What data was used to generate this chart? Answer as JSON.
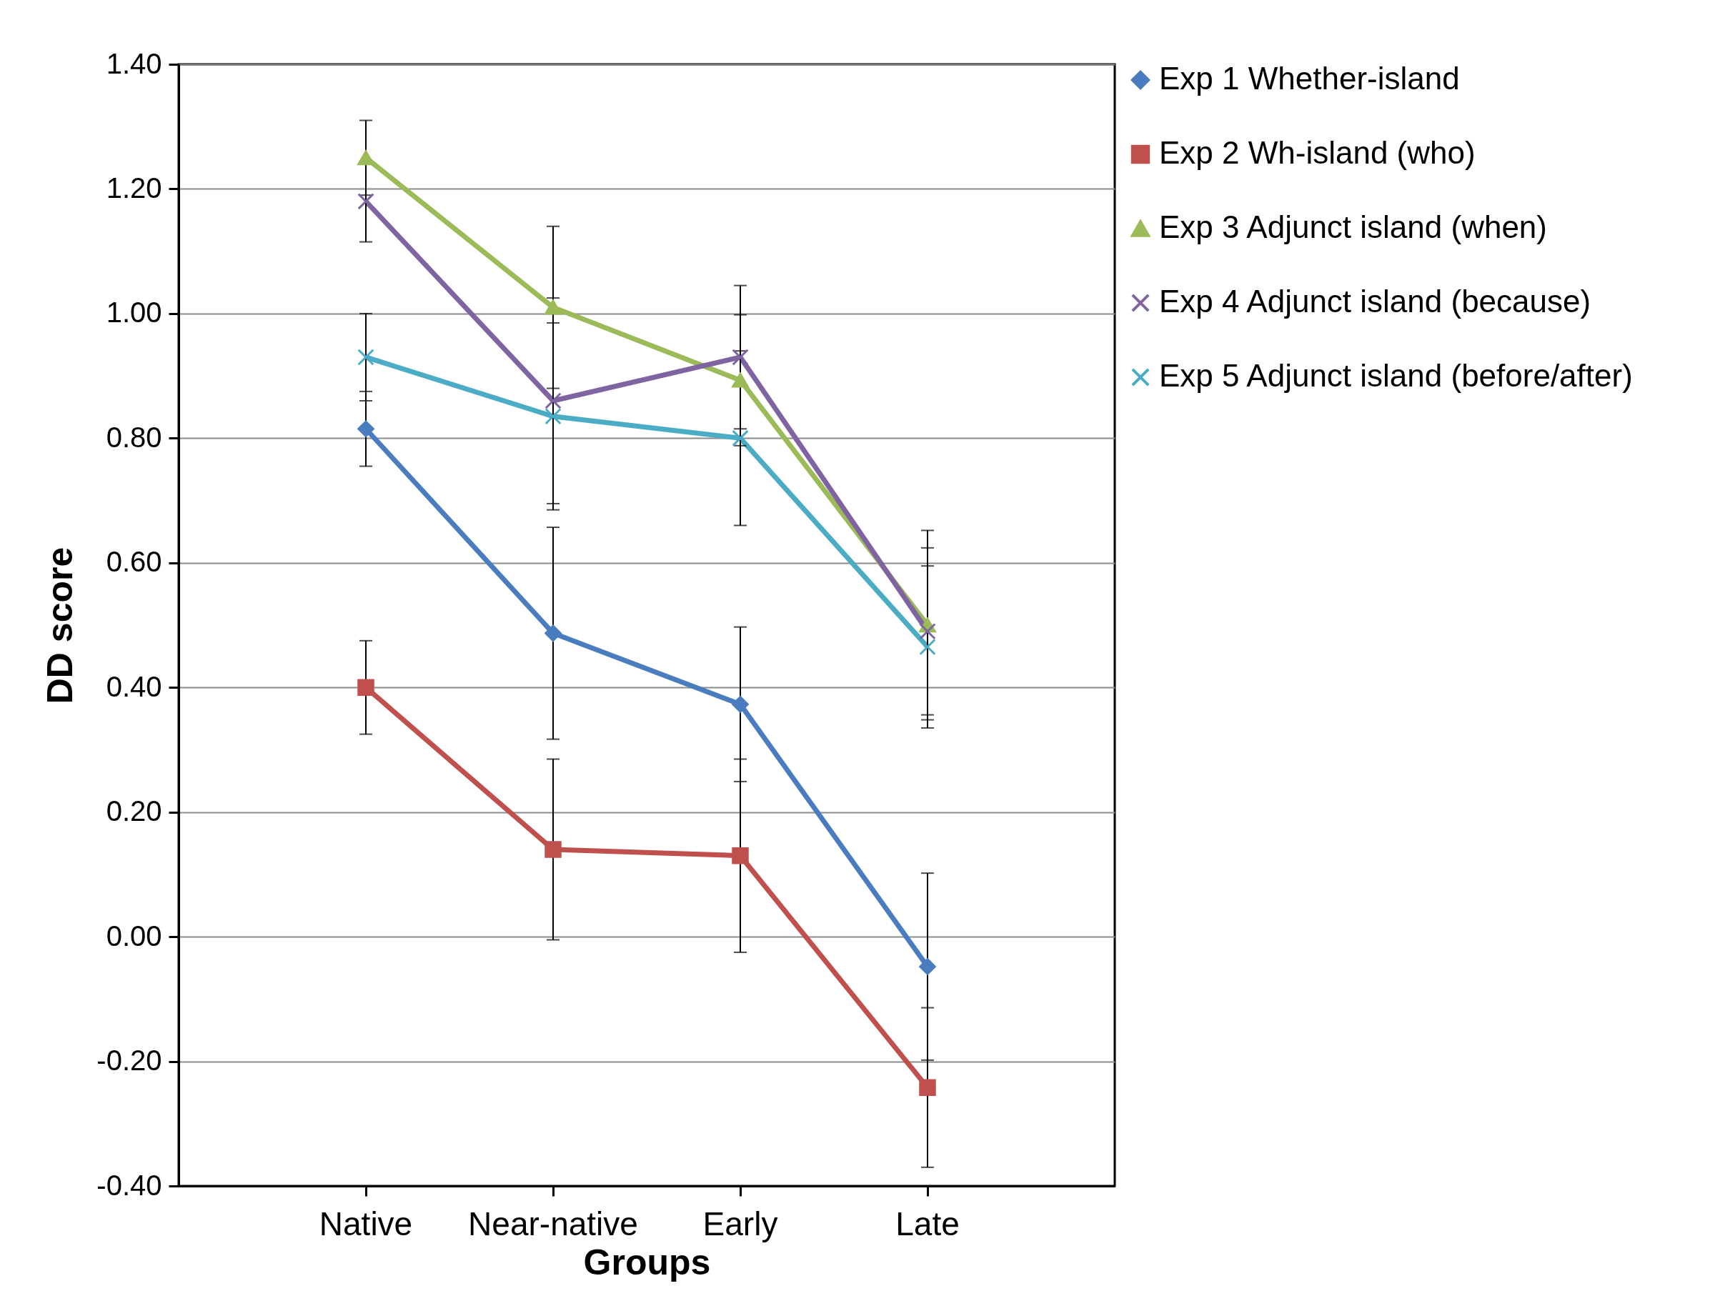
{
  "chart_data": {
    "type": "line",
    "xlabel": "Groups",
    "ylabel": "DD score",
    "categories": [
      "Native",
      "Near-native",
      "Early",
      "Late"
    ],
    "series": [
      {
        "name": "Exp 1 Whether-island",
        "color": "#4a7dbf",
        "marker": "diamond",
        "values": [
          0.815,
          0.487,
          0.373,
          -0.048
        ],
        "errors": [
          0.06,
          0.17,
          0.124,
          0.15
        ]
      },
      {
        "name": "Exp 2 Wh-island (who)",
        "color": "#c0504d",
        "marker": "square",
        "values": [
          0.4,
          0.14,
          0.13,
          -0.242
        ],
        "errors": [
          0.075,
          0.145,
          0.155,
          0.128
        ]
      },
      {
        "name": "Exp 3 Adjunct island (when)",
        "color": "#9bbb59",
        "marker": "triangle",
        "values": [
          1.25,
          1.01,
          0.893,
          0.5
        ],
        "errors": [
          0.06,
          0.13,
          0.105,
          0.152
        ]
      },
      {
        "name": "Exp 4 Adjunct island (because)",
        "color": "#8064a2",
        "marker": "cross",
        "values": [
          1.18,
          0.86,
          0.93,
          0.49
        ],
        "errors": [
          0.065,
          0.165,
          0.115,
          0.134
        ]
      },
      {
        "name": "Exp 5 Adjunct island (before/after)",
        "color": "#4bacc6",
        "marker": "cross",
        "values": [
          0.93,
          0.835,
          0.8,
          0.465
        ],
        "errors": [
          0.07,
          0.15,
          0.14,
          0.13
        ]
      }
    ],
    "ylim": [
      -0.4,
      1.4
    ],
    "yticks": [
      {
        "value": -0.4,
        "label": "-0.40"
      },
      {
        "value": -0.2,
        "label": "-0.20"
      },
      {
        "value": 0,
        "label": "0.00"
      },
      {
        "value": 0.2,
        "label": "0.20"
      },
      {
        "value": 0.4,
        "label": "0.40"
      },
      {
        "value": 0.6,
        "label": "0.60"
      },
      {
        "value": 0.8,
        "label": "0.80"
      },
      {
        "value": 1.0,
        "label": "1.00"
      },
      {
        "value": 1.2,
        "label": "1.20"
      },
      {
        "value": 1.4,
        "label": "1.40"
      }
    ],
    "grid": "y",
    "legend": "right",
    "line_style": "solid"
  }
}
